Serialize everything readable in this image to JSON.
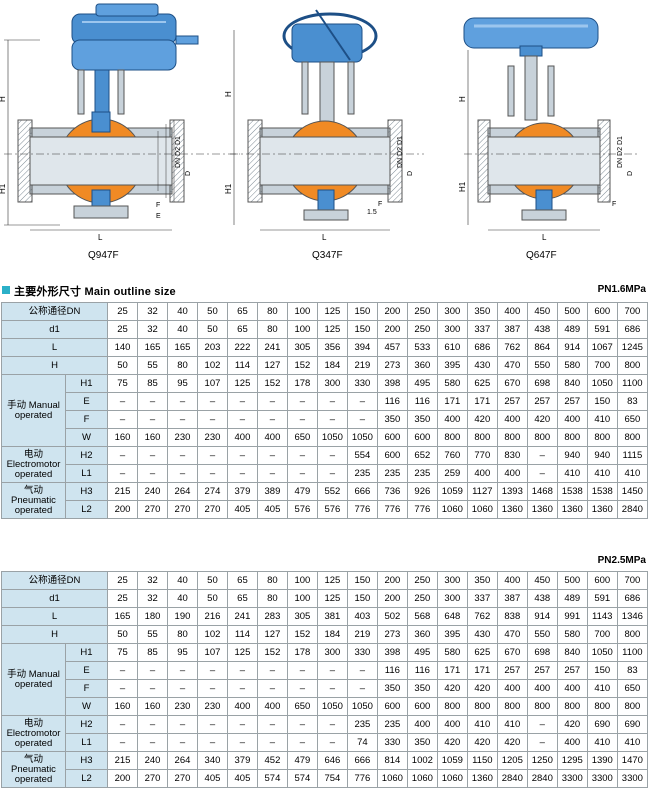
{
  "diagrams": {
    "captions": [
      "Q947F",
      "Q347F",
      "Q647F"
    ],
    "labels": {
      "H": "H",
      "H1": "H1",
      "L": "L",
      "E": "E",
      "F": "F",
      "DN": "DN",
      "D1": "D1",
      "D2": "D2",
      "D": "D",
      "dim15": "1.5"
    }
  },
  "colors": {
    "accent": "#2bb0c8",
    "header_bg": "#cfe4ef",
    "border": "#9aa2a6",
    "actuator": "#4a8fd0",
    "ball": "#f08a24",
    "body": "#c8d2da"
  },
  "section_title": "主要外形尺寸 Main outline size",
  "table1": {
    "pressure": "PN1.6MPa",
    "rows": [
      {
        "label": "公称通径DN",
        "values": [
          "25",
          "32",
          "40",
          "50",
          "65",
          "80",
          "100",
          "125",
          "150",
          "200",
          "250",
          "300",
          "350",
          "400",
          "450",
          "500",
          "600",
          "700"
        ]
      },
      {
        "label": "d1",
        "values": [
          "25",
          "32",
          "40",
          "50",
          "65",
          "80",
          "100",
          "125",
          "150",
          "200",
          "250",
          "300",
          "337",
          "387",
          "438",
          "489",
          "591",
          "686"
        ]
      },
      {
        "label": "L",
        "values": [
          "140",
          "165",
          "165",
          "203",
          "222",
          "241",
          "305",
          "356",
          "394",
          "457",
          "533",
          "610",
          "686",
          "762",
          "864",
          "914",
          "1067",
          "1245"
        ]
      },
      {
        "label": "H",
        "values": [
          "50",
          "55",
          "80",
          "102",
          "114",
          "127",
          "152",
          "184",
          "219",
          "273",
          "360",
          "395",
          "430",
          "470",
          "550",
          "580",
          "700",
          "800"
        ]
      }
    ],
    "groups": [
      {
        "label": "手动 Manual operated",
        "rows": [
          {
            "label": "H1",
            "values": [
              "75",
              "85",
              "95",
              "107",
              "125",
              "152",
              "178",
              "300",
              "330",
              "398",
              "495",
              "580",
              "625",
              "670",
              "698",
              "840",
              "1050",
              "1100"
            ]
          },
          {
            "label": "E",
            "values": [
              "–",
              "–",
              "–",
              "–",
              "–",
              "–",
              "–",
              "–",
              "–",
              "116",
              "116",
              "171",
              "171",
              "257",
              "257",
              "257",
              "150",
              "83"
            ]
          },
          {
            "label": "F",
            "values": [
              "–",
              "–",
              "–",
              "–",
              "–",
              "–",
              "–",
              "–",
              "–",
              "350",
              "350",
              "400",
              "420",
              "400",
              "420",
              "400",
              "410",
              "650"
            ]
          },
          {
            "label": "W",
            "values": [
              "160",
              "160",
              "230",
              "230",
              "400",
              "400",
              "650",
              "1050",
              "1050",
              "600",
              "600",
              "800",
              "800",
              "800",
              "800",
              "800",
              "800",
              "800"
            ]
          }
        ]
      },
      {
        "label": "电动 Electromotor operated",
        "rows": [
          {
            "label": "H2",
            "values": [
              "–",
              "–",
              "–",
              "–",
              "–",
              "–",
              "–",
              "–",
              "554",
              "600",
              "652",
              "760",
              "770",
              "830",
              "–",
              "940",
              "940",
              "1115"
            ]
          },
          {
            "label": "L1",
            "values": [
              "–",
              "–",
              "–",
              "–",
              "–",
              "–",
              "–",
              "–",
              "235",
              "235",
              "235",
              "259",
              "400",
              "400",
              "–",
              "410",
              "410",
              "410"
            ]
          }
        ]
      },
      {
        "label": "气动 Pneumatic operated",
        "rows": [
          {
            "label": "H3",
            "values": [
              "215",
              "240",
              "264",
              "274",
              "379",
              "389",
              "479",
              "552",
              "666",
              "736",
              "926",
              "1059",
              "1127",
              "1393",
              "1468",
              "1538",
              "1538",
              "1450"
            ]
          },
          {
            "label": "L2",
            "values": [
              "200",
              "270",
              "270",
              "270",
              "405",
              "405",
              "576",
              "576",
              "776",
              "776",
              "776",
              "1060",
              "1060",
              "1360",
              "1360",
              "1360",
              "1360",
              "2840"
            ]
          }
        ]
      }
    ]
  },
  "table2": {
    "pressure": "PN2.5MPa",
    "rows": [
      {
        "label": "公称通径DN",
        "values": [
          "25",
          "32",
          "40",
          "50",
          "65",
          "80",
          "100",
          "125",
          "150",
          "200",
          "250",
          "300",
          "350",
          "400",
          "450",
          "500",
          "600",
          "700"
        ]
      },
      {
        "label": "d1",
        "values": [
          "25",
          "32",
          "40",
          "50",
          "65",
          "80",
          "100",
          "125",
          "150",
          "200",
          "250",
          "300",
          "337",
          "387",
          "438",
          "489",
          "591",
          "686"
        ]
      },
      {
        "label": "L",
        "values": [
          "165",
          "180",
          "190",
          "216",
          "241",
          "283",
          "305",
          "381",
          "403",
          "502",
          "568",
          "648",
          "762",
          "838",
          "914",
          "991",
          "1143",
          "1346"
        ]
      },
      {
        "label": "H",
        "values": [
          "50",
          "55",
          "80",
          "102",
          "114",
          "127",
          "152",
          "184",
          "219",
          "273",
          "360",
          "395",
          "430",
          "470",
          "550",
          "580",
          "700",
          "800"
        ]
      }
    ],
    "groups": [
      {
        "label": "手动 Manual operated",
        "rows": [
          {
            "label": "H1",
            "values": [
              "75",
              "85",
              "95",
              "107",
              "125",
              "152",
              "178",
              "300",
              "330",
              "398",
              "495",
              "580",
              "625",
              "670",
              "698",
              "840",
              "1050",
              "1100"
            ]
          },
          {
            "label": "E",
            "values": [
              "–",
              "–",
              "–",
              "–",
              "–",
              "–",
              "–",
              "–",
              "–",
              "116",
              "116",
              "171",
              "171",
              "257",
              "257",
              "257",
              "150",
              "83"
            ]
          },
          {
            "label": "F",
            "values": [
              "–",
              "–",
              "–",
              "–",
              "–",
              "–",
              "–",
              "–",
              "–",
              "350",
              "350",
              "420",
              "420",
              "400",
              "400",
              "400",
              "410",
              "650"
            ]
          },
          {
            "label": "W",
            "values": [
              "160",
              "160",
              "230",
              "230",
              "400",
              "400",
              "650",
              "1050",
              "1050",
              "600",
              "600",
              "800",
              "800",
              "800",
              "800",
              "800",
              "800",
              "800"
            ]
          }
        ]
      },
      {
        "label": "电动 Electromotor operated",
        "rows": [
          {
            "label": "H2",
            "values": [
              "–",
              "–",
              "–",
              "–",
              "–",
              "–",
              "–",
              "–",
              "235",
              "235",
              "400",
              "400",
              "410",
              "410",
              "–",
              "420",
              "690",
              "690"
            ]
          },
          {
            "label": "L1",
            "values": [
              "–",
              "–",
              "–",
              "–",
              "–",
              "–",
              "–",
              "–",
              "74",
              "330",
              "350",
              "420",
              "420",
              "420",
              "–",
              "400",
              "410",
              "410"
            ]
          }
        ]
      },
      {
        "label": "气动 Pneumatic operated",
        "rows": [
          {
            "label": "H3",
            "values": [
              "215",
              "240",
              "264",
              "340",
              "379",
              "452",
              "479",
              "646",
              "666",
              "814",
              "1002",
              "1059",
              "1150",
              "1205",
              "1250",
              "1295",
              "1390",
              "1470"
            ]
          },
          {
            "label": "L2",
            "values": [
              "200",
              "270",
              "270",
              "405",
              "405",
              "574",
              "574",
              "754",
              "776",
              "1060",
              "1060",
              "1060",
              "1360",
              "2840",
              "2840",
              "3300",
              "3300",
              "3300"
            ]
          }
        ]
      }
    ]
  }
}
